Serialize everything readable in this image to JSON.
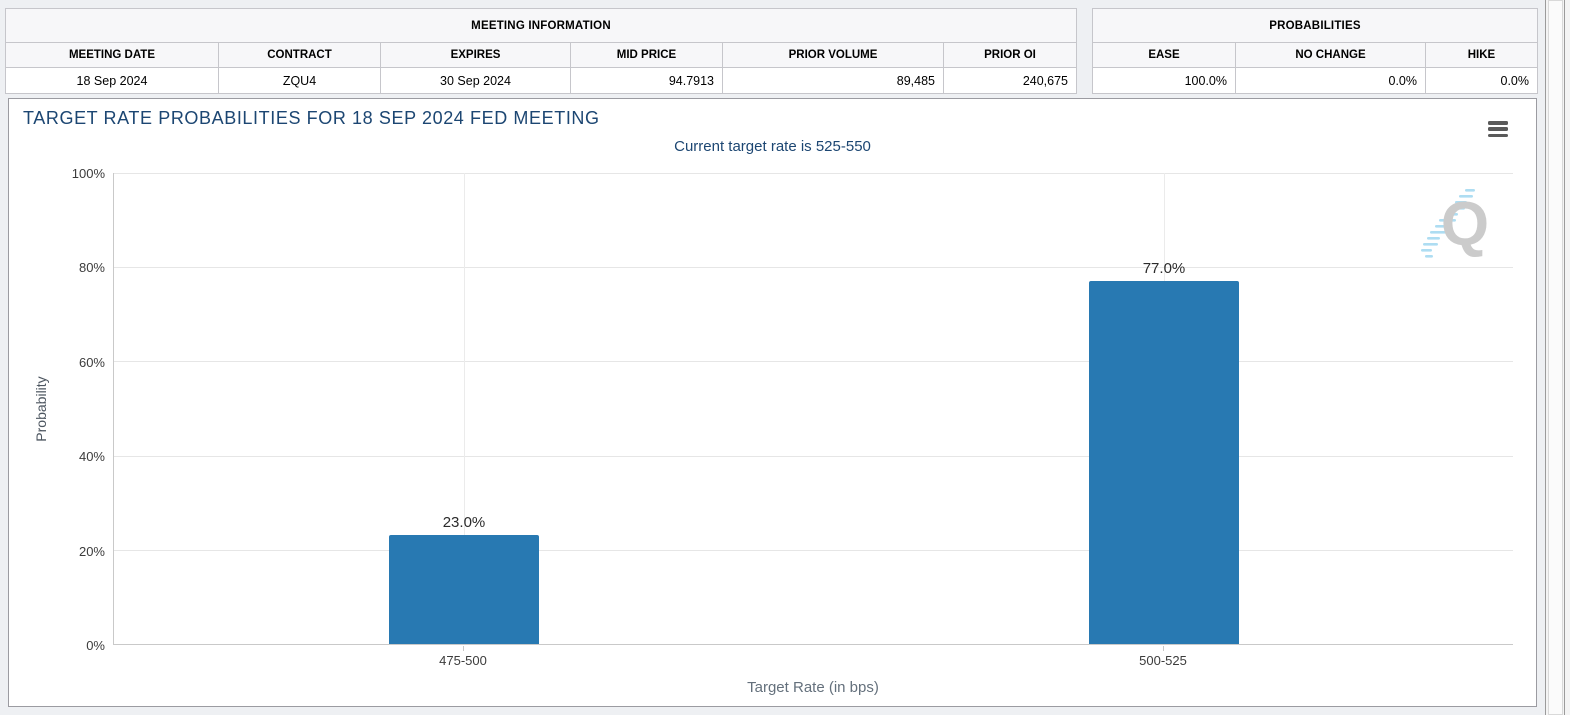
{
  "meeting_information": {
    "title": "MEETING INFORMATION",
    "columns": [
      "MEETING DATE",
      "CONTRACT",
      "EXPIRES",
      "MID PRICE",
      "PRIOR VOLUME",
      "PRIOR OI"
    ],
    "row": [
      "18 Sep 2024",
      "ZQU4",
      "30 Sep 2024",
      "94.7913",
      "89,485",
      "240,675"
    ]
  },
  "probabilities_summary": {
    "title": "PROBABILITIES",
    "columns": [
      "EASE",
      "NO CHANGE",
      "HIKE"
    ],
    "row": [
      "100.0%",
      "0.0%",
      "0.0%"
    ]
  },
  "chart": {
    "title": "TARGET RATE PROBABILITIES FOR 18 SEP 2024 FED MEETING",
    "subtitle": "Current target rate is 525-550",
    "menu_icon": "hamburger-icon",
    "watermark_letter": "Q"
  },
  "chart_data": {
    "type": "bar",
    "categories": [
      "475-500",
      "500-525"
    ],
    "values": [
      23.0,
      77.0
    ],
    "data_labels": [
      "23.0%",
      "77.0%"
    ],
    "title": "TARGET RATE PROBABILITIES FOR 18 SEP 2024 FED MEETING",
    "subtitle": "Current target rate is 525-550",
    "xlabel": "Target Rate (in bps)",
    "ylabel": "Probability",
    "ylim": [
      0,
      100
    ],
    "yticks": [
      0,
      20,
      40,
      60,
      80,
      100
    ],
    "ytick_labels": [
      "0%",
      "20%",
      "40%",
      "60%",
      "80%",
      "100%"
    ],
    "grid": true,
    "legend": false,
    "bar_color": "#2879b2"
  },
  "colors": {
    "bar": "#2879b2",
    "title_navy": "#1c4672",
    "gridline": "#e6e6e6",
    "watermark_gray": "#c9c9c9",
    "watermark_blue": "#aadcf2"
  }
}
